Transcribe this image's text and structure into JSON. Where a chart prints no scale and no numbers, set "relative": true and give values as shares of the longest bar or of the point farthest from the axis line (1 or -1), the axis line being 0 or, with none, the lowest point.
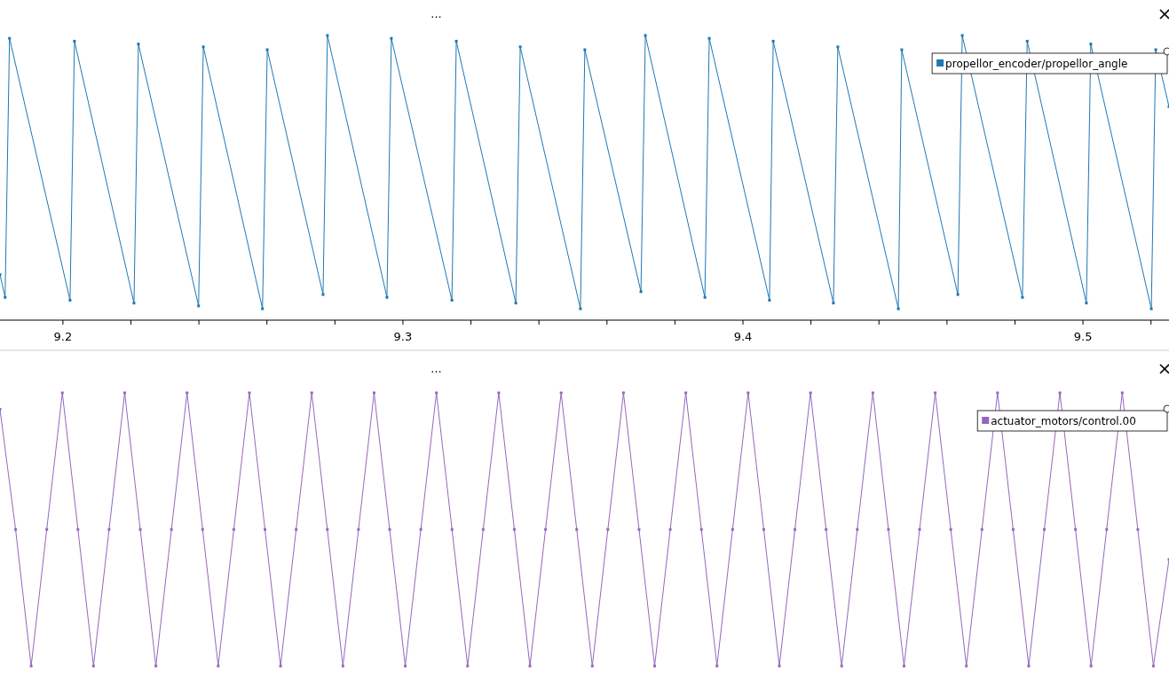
{
  "chart_data": [
    {
      "type": "line",
      "title": "...",
      "relative": true,
      "xlim": [
        9.1815,
        9.5253
      ],
      "xticks": [
        {
          "value": 9.2,
          "label": "9.2"
        },
        {
          "value": 9.22,
          "label": null
        },
        {
          "value": 9.24,
          "label": null
        },
        {
          "value": 9.26,
          "label": null
        },
        {
          "value": 9.28,
          "label": null
        },
        {
          "value": 9.3,
          "label": "9.3"
        },
        {
          "value": 9.32,
          "label": null
        },
        {
          "value": 9.34,
          "label": null
        },
        {
          "value": 9.36,
          "label": null
        },
        {
          "value": 9.38,
          "label": null
        },
        {
          "value": 9.4,
          "label": "9.4"
        },
        {
          "value": 9.42,
          "label": null
        },
        {
          "value": 9.44,
          "label": null
        },
        {
          "value": 9.46,
          "label": null
        },
        {
          "value": 9.48,
          "label": null
        },
        {
          "value": 9.5,
          "label": "9.5"
        },
        {
          "value": 9.52,
          "label": null
        }
      ],
      "tick_labels": "x",
      "grid": false,
      "legend": "top right",
      "marker": "square",
      "line_style": "solid",
      "series": [
        {
          "name": "propellor_encoder/propellor_angle",
          "color": "#1f77b4",
          "x": [
            9.1815,
            9.183,
            9.1843,
            9.2021,
            9.2034,
            9.2209,
            9.2222,
            9.2399,
            9.2413,
            9.2587,
            9.2601,
            9.2765,
            9.2778,
            9.2953,
            9.2966,
            9.3144,
            9.3157,
            9.3332,
            9.3345,
            9.3522,
            9.3535,
            9.37,
            9.3713,
            9.3888,
            9.3901,
            9.4078,
            9.4089,
            9.4266,
            9.4279,
            9.4457,
            9.4467,
            9.4632,
            9.4645,
            9.4822,
            9.4836,
            9.501,
            9.5023,
            9.5201,
            9.5214,
            9.5253
          ],
          "values": [
            0.16,
            0.08,
            0.99,
            0.07,
            0.98,
            0.06,
            0.97,
            0.05,
            0.96,
            0.04,
            0.95,
            0.09,
            1.0,
            0.08,
            0.99,
            0.07,
            0.98,
            0.06,
            0.96,
            0.04,
            0.95,
            0.1,
            1.0,
            0.08,
            0.99,
            0.07,
            0.98,
            0.06,
            0.96,
            0.04,
            0.95,
            0.09,
            1.0,
            0.08,
            0.98,
            0.06,
            0.97,
            0.04,
            0.95,
            0.75
          ]
        }
      ]
    },
    {
      "type": "line",
      "title": "...",
      "relative": true,
      "categories": [
        null,
        null,
        null,
        null,
        null,
        null,
        null,
        null,
        null,
        null,
        null,
        null,
        null,
        null,
        null,
        null,
        null,
        null,
        null,
        null,
        null,
        null,
        null,
        null,
        null,
        null,
        null,
        null,
        null,
        null,
        null,
        null,
        null,
        null,
        null,
        null,
        null,
        null,
        null,
        null,
        null,
        null,
        null,
        null,
        null,
        null,
        null,
        null,
        null,
        null,
        null,
        null,
        null,
        null,
        null,
        null,
        null,
        null,
        null,
        null,
        null,
        null,
        null,
        null,
        null,
        null,
        null,
        null,
        null,
        null,
        null,
        null,
        null,
        null,
        null,
        null
      ],
      "tick_labels": false,
      "grid": false,
      "legend": "top right",
      "marker": "square",
      "line_style": "solid",
      "series": [
        {
          "name": "actuator_motors/control.00",
          "color": "#9467bd",
          "values": [
            0.94,
            0.5,
            0,
            0.5,
            1,
            0.5,
            0,
            0.5,
            1,
            0.5,
            0,
            0.5,
            1,
            0.5,
            0,
            0.5,
            1,
            0.5,
            0,
            0.5,
            1,
            0.5,
            0,
            0.5,
            1,
            0.5,
            0,
            0.5,
            1,
            0.5,
            0,
            0.5,
            1,
            0.5,
            0,
            0.5,
            1,
            0.5,
            0,
            0.5,
            1,
            0.5,
            0,
            0.5,
            1,
            0.5,
            0,
            0.5,
            1,
            0.5,
            0,
            0.5,
            1,
            0.5,
            0,
            0.5,
            1,
            0.5,
            0,
            0.5,
            1,
            0.5,
            0,
            0.5,
            1,
            0.5,
            0,
            0.5,
            1,
            0.5,
            0,
            0.5,
            1,
            0.5,
            0,
            0.39
          ]
        }
      ]
    }
  ]
}
